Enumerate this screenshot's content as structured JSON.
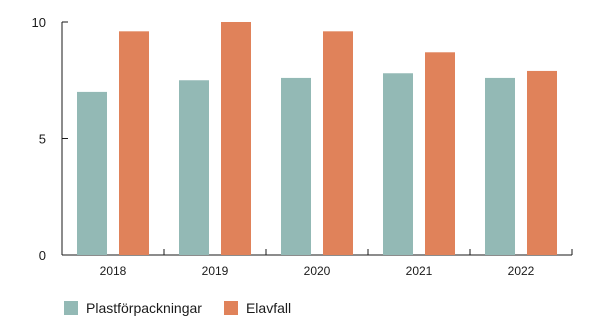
{
  "chart_data": {
    "type": "bar",
    "categories": [
      "2018",
      "2019",
      "2020",
      "2021",
      "2022"
    ],
    "series": [
      {
        "name": "Plastförpackningar",
        "color": "#93b9b5",
        "values": [
          7.0,
          7.5,
          7.6,
          7.8,
          7.6
        ]
      },
      {
        "name": "Elavfall",
        "color": "#e0825a",
        "values": [
          9.6,
          10.0,
          9.6,
          8.7,
          7.9
        ]
      }
    ],
    "yticks": [
      "0",
      "5",
      "10"
    ],
    "ylim": [
      0,
      10
    ],
    "grid": false,
    "legend_position": "bottom-left"
  }
}
